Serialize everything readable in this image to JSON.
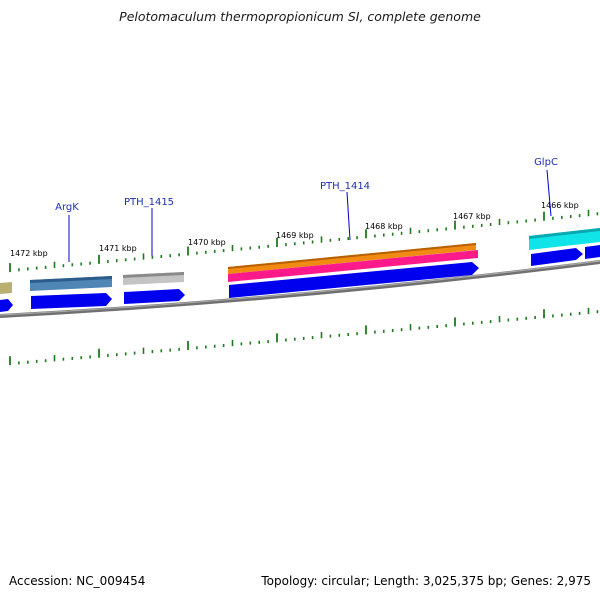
{
  "title": "Pelotomaculum thermopropionicum SI, complete genome",
  "footer": {
    "accession": "Accession: NC_009454",
    "summary": "Topology: circular; Length: 3,025,375 bp; Genes: 2,975"
  },
  "colors": {
    "backbone": "#7a7a7a",
    "tick": "#1e7a1e",
    "cds_strand": "#0000ee",
    "gene_label": "#1f2fb3"
  },
  "kbp_labels": [
    "1472 kbp",
    "1471 kbp",
    "1470 kbp",
    "1469 kbp",
    "1468 kbp",
    "1467 kbp",
    "1466 kbp"
  ],
  "genes": [
    {
      "label": "ArgK",
      "color": "#4f86b5"
    },
    {
      "label": "PTH_1415",
      "color": "#c4c4c4"
    },
    {
      "label": "PTH_1414",
      "color": "#f08a10"
    },
    {
      "label": "GlpC",
      "color": "#11e4e8"
    }
  ],
  "extra_feature_colors": {
    "pink_band": "#ff1a8c",
    "left_olive_band": "#b8b070"
  }
}
